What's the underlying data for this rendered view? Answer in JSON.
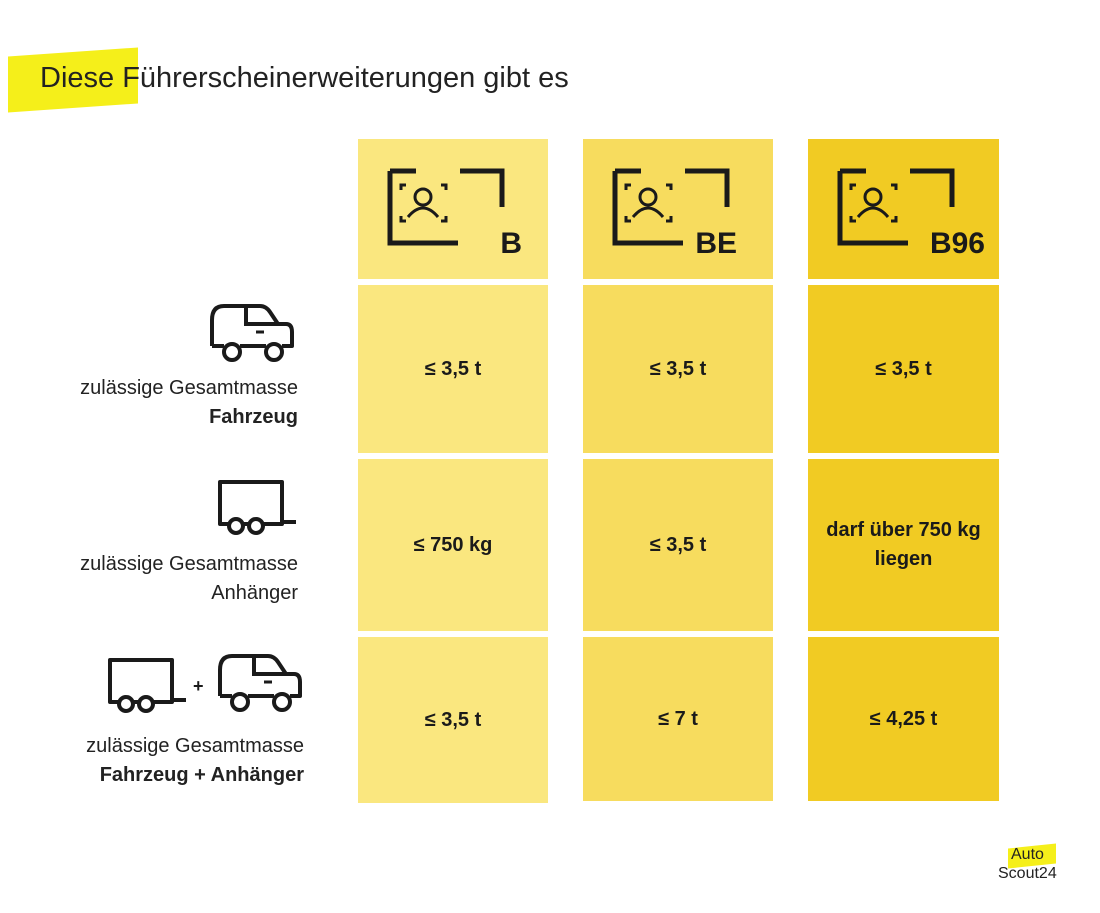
{
  "title": "Diese Führerscheinerweiterungen gibt es",
  "columns": [
    {
      "code": "B",
      "color": "#fae77f"
    },
    {
      "code": "BE",
      "color": "#f7dc5e"
    },
    {
      "code": "B96",
      "color": "#f1cb23"
    }
  ],
  "rows": [
    {
      "label_line1": "zulässige Gesamtmasse",
      "label_line2": "Fahrzeug",
      "icon": "car-icon",
      "values": [
        "≤ 3,5 t",
        "≤ 3,5 t",
        "≤ 3,5 t"
      ]
    },
    {
      "label_line1": "zulässige Gesamtmasse",
      "label_line2": "Anhänger",
      "icon": "trailer-icon",
      "values": [
        "≤ 750 kg",
        "≤ 3,5 t",
        "darf über 750 kg liegen"
      ]
    },
    {
      "label_line1": "zulässige Gesamtmasse",
      "label_line2": "Fahrzeug + Anhänger",
      "icon": "trailer-plus-car-icon",
      "plus": "+",
      "values": [
        "≤ 3,5 t",
        "≤ 7 t",
        "≤ 4,25 t"
      ]
    }
  ],
  "logo": {
    "line1": "Auto",
    "line2": "Scout24"
  }
}
